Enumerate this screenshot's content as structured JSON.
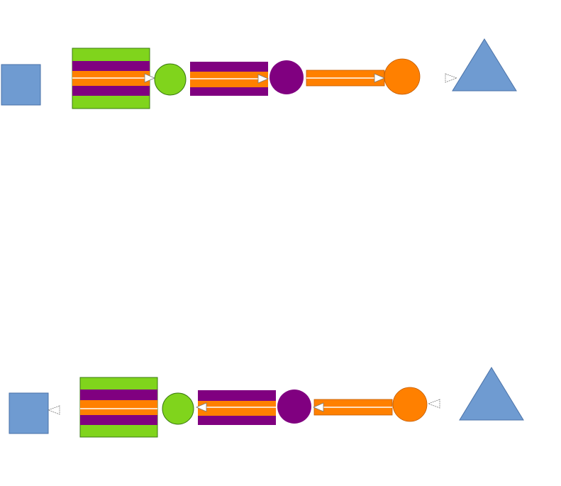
{
  "colors": {
    "blue": "#6f9bd1",
    "blue_stroke": "#4a72a8",
    "green": "#80d41c",
    "purple": "#800080",
    "orange": "#ff8000",
    "arrowhead": "#ffffff",
    "arrow_stroke": "#7a7a7a",
    "divider": "#ffffff"
  },
  "rows": [
    {
      "direction": "left-to-right",
      "sequence": [
        "square",
        "green-purple-orange-bundle",
        "green-circle",
        "purple-orange-bundle",
        "purple-circle",
        "orange-bar",
        "orange-circle",
        "triangle"
      ]
    },
    {
      "direction": "right-to-left",
      "sequence": [
        "square",
        "green-purple-orange-bundle",
        "green-circle",
        "purple-orange-bundle",
        "purple-circle",
        "orange-bar",
        "orange-circle",
        "triangle"
      ]
    }
  ]
}
